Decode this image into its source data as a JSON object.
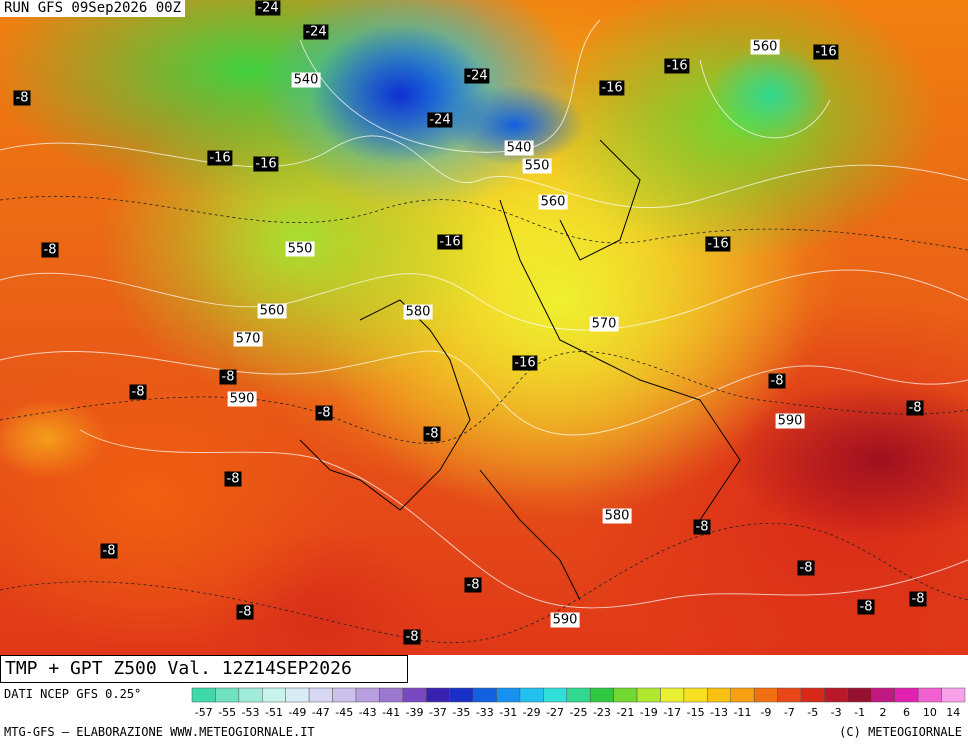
{
  "header": {
    "run": "RUN GFS 09Sep2026 00Z"
  },
  "map": {
    "temperature_labels": [
      -24,
      -24,
      -24,
      -24,
      -16,
      -16,
      -16,
      -16,
      -16,
      -16,
      -16,
      -16,
      -8,
      -8,
      -8,
      -8,
      -8,
      -8,
      -8,
      -8,
      -8,
      -8,
      -8,
      -8,
      -8,
      -8,
      -8,
      -8,
      -8,
      -8
    ],
    "height_labels": [
      540,
      560,
      540,
      550,
      560,
      550,
      560,
      570,
      580,
      570,
      590,
      590,
      580,
      590
    ]
  },
  "footer": {
    "title": "TMP + GPT Z500 Val. 12Z14SEP2026",
    "source": "DATI NCEP GFS 0.25°",
    "credit": "MTG-GFS — ELABORAZIONE WWW.METEOGIORNALE.IT",
    "copyright": "(C) METEOGIORNALE"
  },
  "legend": {
    "labels": [
      -57,
      -55,
      -53,
      -51,
      -49,
      -47,
      -45,
      -43,
      -41,
      -39,
      -37,
      -35,
      -33,
      -31,
      -29,
      -27,
      -25,
      -23,
      -21,
      -19,
      -17,
      -15,
      -13,
      -11,
      -9,
      -7,
      -5,
      -3,
      -1,
      2,
      6,
      10,
      14
    ],
    "colors": [
      "#3fd8a8",
      "#6fe2c0",
      "#9fecd8",
      "#c8f4ec",
      "#d8ecf8",
      "#d8d8f4",
      "#ccc0ec",
      "#b8a0e0",
      "#9c78d0",
      "#7848c0",
      "#3820b0",
      "#1830c8",
      "#1060e0",
      "#1890f0",
      "#20c0f0",
      "#30e0d8",
      "#30d890",
      "#30c840",
      "#70d830",
      "#b0e830",
      "#e8f030",
      "#f8e020",
      "#f8c010",
      "#f8a010",
      "#f07010",
      "#e84818",
      "#d82818",
      "#b81828",
      "#981030",
      "#c01880",
      "#e020b0",
      "#f060d0",
      "#f8a0e8"
    ]
  }
}
